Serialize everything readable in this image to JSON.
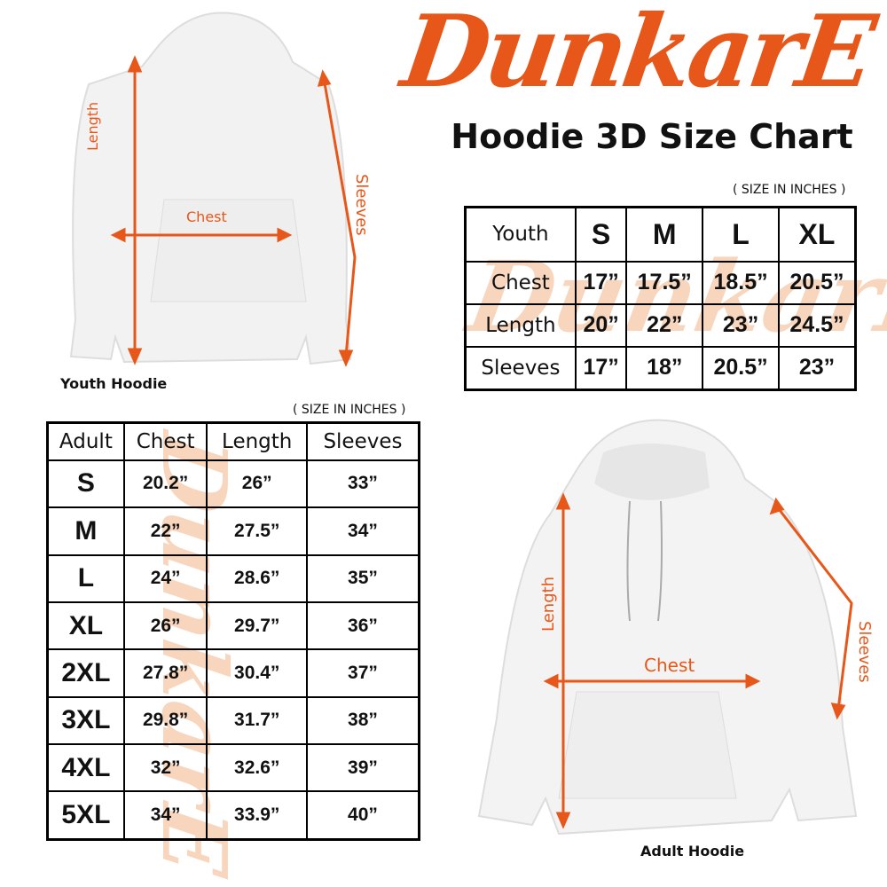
{
  "brand": {
    "logo_text": "DunkarE",
    "accent": "#e8571a"
  },
  "title": "Hoodie 3D Size Chart",
  "youth": {
    "unit_note": "( SIZE IN INCHES )",
    "header": [
      "Youth",
      "S",
      "M",
      "L",
      "XL"
    ],
    "rows": [
      [
        "Chest",
        "17”",
        "17.5”",
        "18.5”",
        "20.5”"
      ],
      [
        "Length",
        "20”",
        "22”",
        "23”",
        "24.5”"
      ],
      [
        "Sleeves",
        "17”",
        "18”",
        "20.5”",
        "23”"
      ]
    ],
    "caption": "Youth Hoodie",
    "labels": {
      "length": "Length",
      "chest": "Chest",
      "sleeves": "Sleeves"
    }
  },
  "adult": {
    "unit_note": "( SIZE IN INCHES )",
    "header": [
      "Adult",
      "Chest",
      "Length",
      "Sleeves"
    ],
    "rows": [
      [
        "S",
        "20.2”",
        "26”",
        "33”"
      ],
      [
        "M",
        "22”",
        "27.5”",
        "34”"
      ],
      [
        "L",
        "24”",
        "28.6”",
        "35”"
      ],
      [
        "XL",
        "26”",
        "29.7”",
        "36”"
      ],
      [
        "2XL",
        "27.8”",
        "30.4”",
        "37”"
      ],
      [
        "3XL",
        "29.8”",
        "31.7”",
        "38”"
      ],
      [
        "4XL",
        "32”",
        "32.6”",
        "39”"
      ],
      [
        "5XL",
        "34”",
        "33.9”",
        "40”"
      ]
    ],
    "caption": "Adult Hoodie",
    "labels": {
      "length": "Length",
      "chest": "Chest",
      "sleeves": "Sleeves"
    }
  }
}
